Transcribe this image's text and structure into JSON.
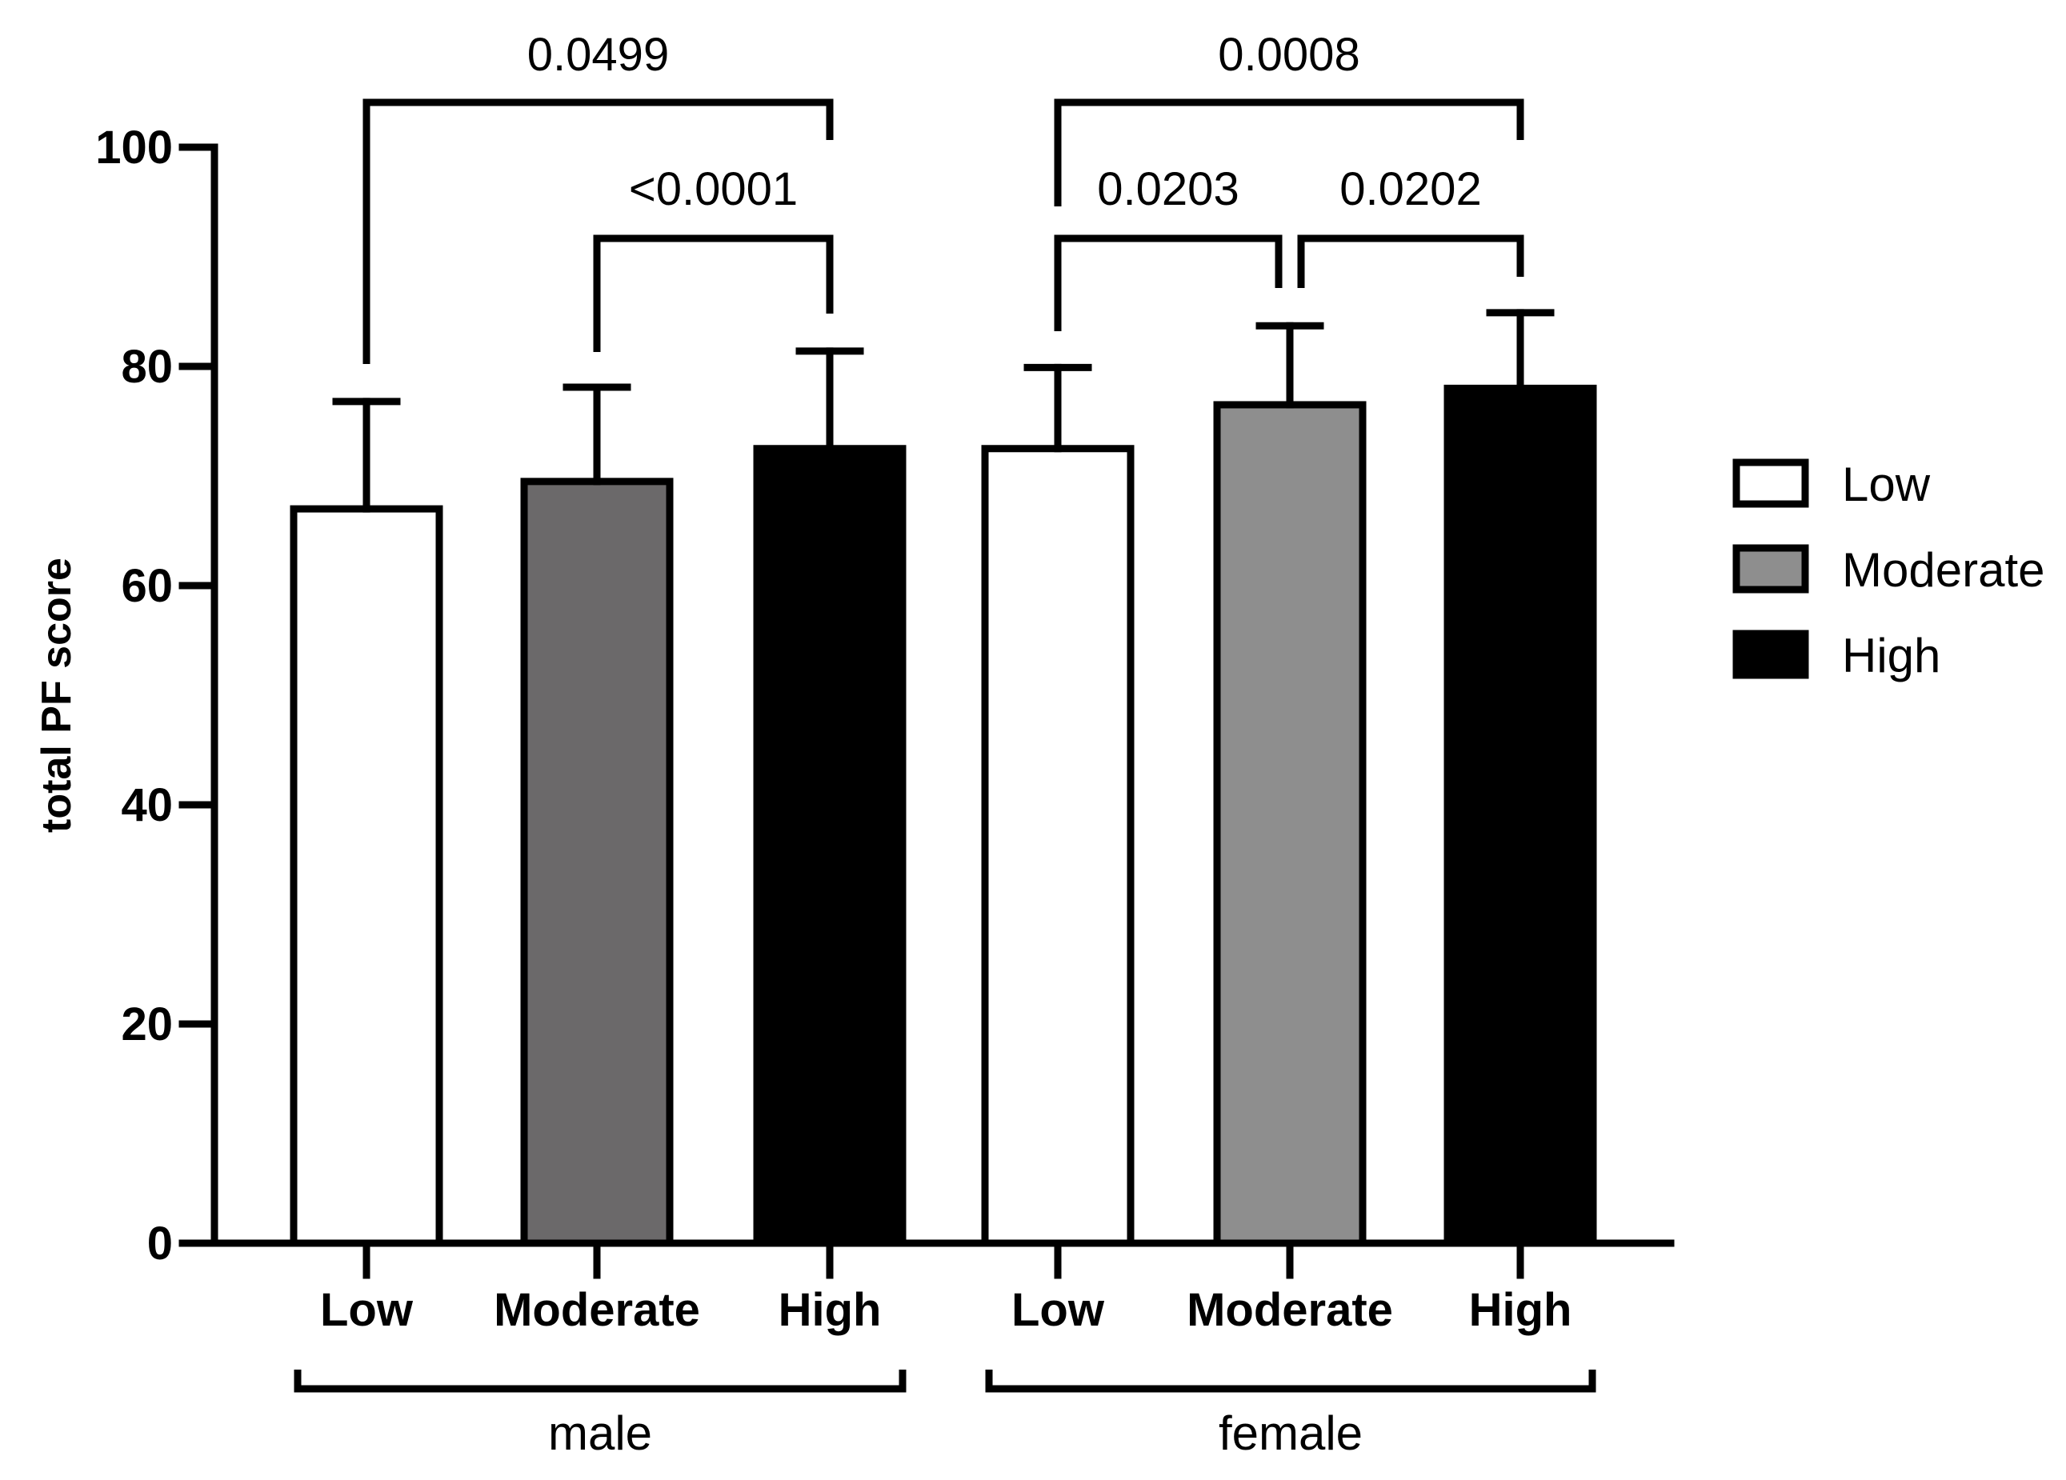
{
  "chart_data": {
    "type": "bar",
    "ylabel": "total PF score",
    "ylim": [
      0,
      100
    ],
    "yticks": [
      "0",
      "20",
      "40",
      "60",
      "80",
      "100"
    ],
    "groups": [
      {
        "name": "male",
        "bars": [
          {
            "label": "Low",
            "value": 67,
            "error": 9.8,
            "level": "low"
          },
          {
            "label": "Moderate",
            "value": 69.5,
            "error": 8.6,
            "level": "moderate"
          },
          {
            "label": "High",
            "value": 72.5,
            "error": 8.9,
            "level": "high"
          }
        ]
      },
      {
        "name": "female",
        "bars": [
          {
            "label": "Low",
            "value": 72.5,
            "error": 7.4,
            "level": "low"
          },
          {
            "label": "Moderate",
            "value": 76.5,
            "error": 7.2,
            "level": "moderate"
          },
          {
            "label": "High",
            "value": 78,
            "error": 6.9,
            "level": "high"
          }
        ]
      }
    ],
    "significance": [
      {
        "group": 0,
        "from": 0,
        "to": 2,
        "p": "0.0499"
      },
      {
        "group": 0,
        "from": 1,
        "to": 2,
        "p": "<0.0001"
      },
      {
        "group": 1,
        "from": 0,
        "to": 2,
        "p": "0.0008"
      },
      {
        "group": 1,
        "from": 0,
        "to": 1,
        "p": "0.0203"
      },
      {
        "group": 1,
        "from": 1,
        "to": 2,
        "p": "0.0202"
      }
    ],
    "legend": {
      "placement": "right",
      "items": [
        {
          "label": "Low",
          "level": "low"
        },
        {
          "label": "Moderate",
          "level": "moderate"
        },
        {
          "label": "High",
          "level": "high"
        }
      ]
    },
    "colors": {
      "low": "#ffffff",
      "male_moderate": "#6b696a",
      "female_moderate": "#8e8e8e",
      "legend_moderate": "#8e8e8e",
      "high": "#000000",
      "stroke": "#000000"
    }
  }
}
